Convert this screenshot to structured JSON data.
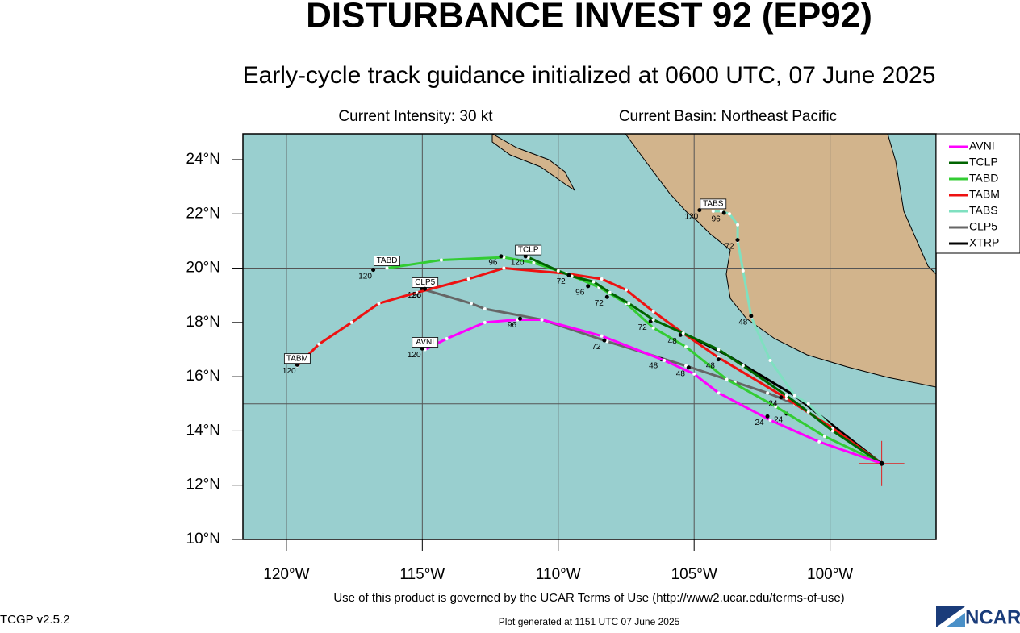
{
  "header": {
    "title": "DISTURBANCE INVEST 92 (EP92)",
    "subtitle": "Early-cycle track guidance initialized at 0600 UTC, 07 June 2025",
    "intensity": "Current Intensity: 30 kt",
    "basin": "Current Basin: Northeast Pacific"
  },
  "map": {
    "type": "map",
    "xlim": [
      -121.6,
      -96.1
    ],
    "ylim": [
      10,
      24.95
    ],
    "xticks": [
      {
        "value": -120,
        "label": "120°W"
      },
      {
        "value": -115,
        "label": "115°W"
      },
      {
        "value": -110,
        "label": "110°W"
      },
      {
        "value": -105,
        "label": "105°W"
      },
      {
        "value": -100,
        "label": "100°W"
      }
    ],
    "yticks": [
      {
        "value": 10,
        "label": "10°N"
      },
      {
        "value": 12,
        "label": "12°N"
      },
      {
        "value": 14,
        "label": "14°N"
      },
      {
        "value": 16,
        "label": "16°N"
      },
      {
        "value": 18,
        "label": "18°N"
      },
      {
        "value": 20,
        "label": "20°N"
      },
      {
        "value": 22,
        "label": "22°N"
      },
      {
        "value": 24,
        "label": "24°N"
      }
    ],
    "grid_lon": [
      -120,
      -115,
      -110,
      -105,
      -100
    ],
    "grid_lat": [
      15,
      20
    ],
    "current_position": {
      "lon": -98.1,
      "lat": 12.8
    },
    "tracks": [
      {
        "name": "AVNI",
        "color": "#ff00ff",
        "lon": [
          -98.1,
          -100.4,
          -102.2,
          -104.1,
          -105.0,
          -106.1,
          -108.4,
          -110.6,
          -111.5,
          -112.7,
          -114.1,
          -114.9
        ],
        "lat": [
          12.8,
          13.6,
          14.4,
          15.4,
          16.1,
          16.6,
          17.5,
          18.1,
          18.1,
          18.0,
          17.4,
          17.0
        ],
        "labels": [
          {
            "text": 24,
            "lon": -102.6,
            "lat": 14.3
          },
          {
            "text": 48,
            "lon": -105.5,
            "lat": 16.1
          },
          {
            "text": 72,
            "lon": -108.6,
            "lat": 17.1
          },
          {
            "text": 96,
            "lon": -111.7,
            "lat": 17.9
          },
          {
            "text": 120,
            "lon": -115.3,
            "lat": 16.8
          }
        ]
      },
      {
        "name": "TCLP",
        "color": "#006400",
        "lon": [
          -98.1,
          -99.9,
          -100.8,
          -101.6,
          -103.2,
          -104.1,
          -105.4,
          -106.5,
          -107.4,
          -108.1,
          -108.7,
          -109.5,
          -110.0,
          -111.1
        ],
        "lat": [
          12.8,
          14.0,
          14.7,
          15.3,
          16.4,
          17.0,
          17.6,
          18.1,
          18.7,
          19.1,
          19.5,
          19.7,
          19.9,
          20.4
        ],
        "labels": [
          {
            "text": 24,
            "lon": -102.1,
            "lat": 15.0
          },
          {
            "text": 48,
            "lon": -104.4,
            "lat": 16.4
          },
          {
            "text": 72,
            "lon": -109.9,
            "lat": 19.5
          },
          {
            "text": 96,
            "lon": -109.2,
            "lat": 19.1
          },
          {
            "text": 120,
            "lon": -111.5,
            "lat": 20.2
          }
        ]
      },
      {
        "name": "TABD",
        "color": "#33cc33",
        "lon": [
          -98.1,
          -100.2,
          -102.0,
          -103.8,
          -105.3,
          -106.5,
          -107.5,
          -108.5,
          -109.7,
          -110.9,
          -112.0,
          -114.3,
          -116.3
        ],
        "lat": [
          12.8,
          13.8,
          14.9,
          15.9,
          17.1,
          17.8,
          18.7,
          19.3,
          19.8,
          20.2,
          20.4,
          20.3,
          20.0
        ],
        "labels": [
          {
            "text": 48,
            "lon": -105.8,
            "lat": 17.3
          },
          {
            "text": 72,
            "lon": -106.9,
            "lat": 17.8
          },
          {
            "text": 96,
            "lon": -112.4,
            "lat": 20.2
          },
          {
            "text": 120,
            "lon": -117.1,
            "lat": 19.7
          }
        ]
      },
      {
        "name": "TABM",
        "color": "#ee1111",
        "lon": [
          -98.1,
          -99.9,
          -101.6,
          -104.1,
          -105.4,
          -106.5,
          -107.5,
          -108.4,
          -109.7,
          -112.0,
          -113.3,
          -115.2,
          -116.6,
          -117.6,
          -118.8,
          -119.6
        ],
        "lat": [
          12.8,
          14.1,
          15.2,
          16.7,
          17.6,
          18.4,
          19.2,
          19.6,
          19.8,
          20.0,
          19.6,
          19.1,
          18.7,
          18.0,
          17.2,
          16.4
        ],
        "labels": [
          {
            "text": 72,
            "lon": -108.5,
            "lat": 18.7
          },
          {
            "text": 96,
            "lon": -115.2,
            "lat": 19.0
          },
          {
            "text": 120,
            "lon": -119.9,
            "lat": 16.2
          }
        ]
      },
      {
        "name": "TABS",
        "color": "#7fe0c0",
        "lon": [
          -98.1,
          -99.8,
          -100.8,
          -101.3,
          -102.2,
          -102.9,
          -103.2,
          -103.4,
          -103.4,
          -103.7,
          -104.0,
          -104.3
        ],
        "lat": [
          12.8,
          14.0,
          15.0,
          15.3,
          16.6,
          18.2,
          19.9,
          21.0,
          21.6,
          22.0,
          22.1,
          22.1
        ],
        "labels": [
          {
            "text": 48,
            "lon": -103.2,
            "lat": 18.0
          },
          {
            "text": 72,
            "lon": -103.7,
            "lat": 20.8
          },
          {
            "text": 96,
            "lon": -104.2,
            "lat": 21.8
          },
          {
            "text": 120,
            "lon": -105.1,
            "lat": 21.9
          }
        ]
      },
      {
        "name": "CLP5",
        "color": "#666666",
        "lon": [
          -98.1,
          -99.9,
          -101.3,
          -102.3,
          -103.5,
          -105.3,
          -108.2,
          -110.6,
          -112.7,
          -113.2,
          -114.9
        ],
        "lat": [
          12.8,
          14.1,
          15.0,
          15.4,
          15.8,
          16.4,
          17.3,
          18.1,
          18.5,
          18.7,
          19.2
        ],
        "labels": [
          {
            "text": 24,
            "lon": -101.9,
            "lat": 14.4
          },
          {
            "text": 48,
            "lon": -106.5,
            "lat": 16.4
          },
          {
            "text": 120,
            "lon": -115.3,
            "lat": 19.0
          }
        ]
      },
      {
        "name": "XTRP",
        "color": "#000000",
        "lon": [
          -98.1,
          -101.3,
          -103.8,
          -105.4
        ],
        "lat": [
          12.8,
          15.3,
          16.8,
          17.6
        ],
        "labels": []
      }
    ]
  },
  "footer": {
    "terms": "Use of this product is governed by the UCAR Terms of Use (http://www2.ucar.edu/terms-of-use)",
    "version": "TCGP v2.5.2",
    "generated": "Plot generated at 1151 UTC   07 June 2025",
    "logo": "NCAR"
  }
}
